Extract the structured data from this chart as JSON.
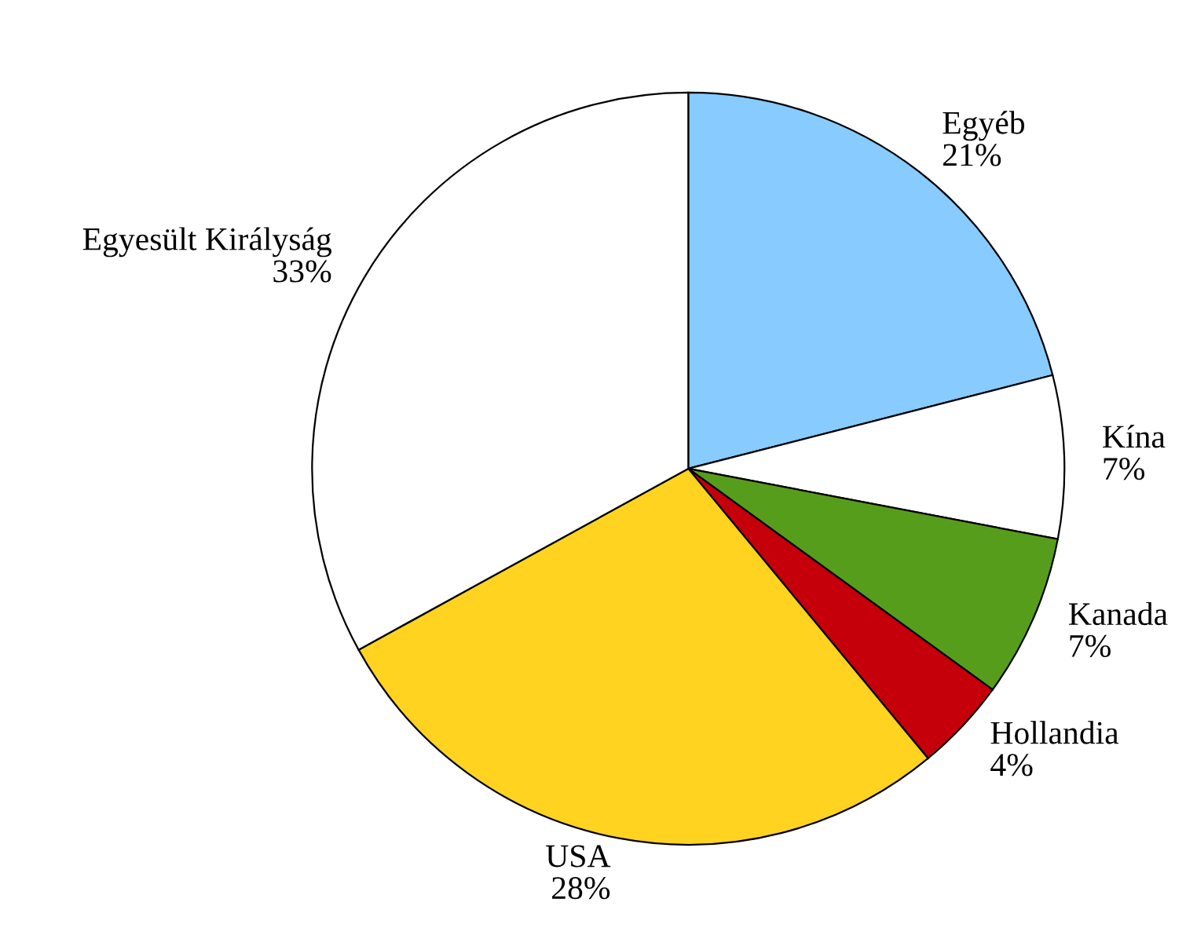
{
  "chart_data": {
    "type": "pie",
    "categories": [
      "Egyéb",
      "Kína",
      "Kanada",
      "Hollandia",
      "USA",
      "Egyesült Királyság"
    ],
    "values": [
      21,
      7,
      7,
      4,
      28,
      33
    ],
    "value_labels": [
      "21%",
      "7%",
      "7%",
      "4%",
      "28%",
      "33%"
    ],
    "colors": [
      "#87cbff",
      "#ffffff",
      "#579d1c",
      "#c5000b",
      "#ffd320",
      "#ffffff"
    ]
  }
}
